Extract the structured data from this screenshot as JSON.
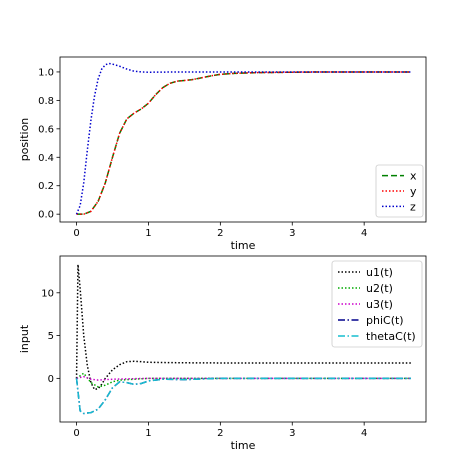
{
  "figure": {
    "background": "#ffffff"
  },
  "chart_data": [
    {
      "type": "line",
      "title": "",
      "xlabel": "time",
      "ylabel": "position",
      "xlim": [
        -0.23,
        4.86
      ],
      "ylim": [
        -0.055,
        1.105
      ],
      "xticks": [
        0,
        1,
        2,
        3,
        4
      ],
      "xtick_labels": [
        "0",
        "1",
        "2",
        "3",
        "4"
      ],
      "yticks": [
        0.0,
        0.2,
        0.4,
        0.6,
        0.8,
        1.0
      ],
      "ytick_labels": [
        "0.0",
        "0.2",
        "0.4",
        "0.6",
        "0.8",
        "1.0"
      ],
      "grid": false,
      "legend_position": "lower-right",
      "series": [
        {
          "name": "x",
          "color": "#008000",
          "style": "dashed",
          "points": [
            [
              0,
              0
            ],
            [
              0.1,
              0
            ],
            [
              0.2,
              0.02
            ],
            [
              0.3,
              0.09
            ],
            [
              0.4,
              0.22
            ],
            [
              0.5,
              0.4
            ],
            [
              0.6,
              0.57
            ],
            [
              0.7,
              0.67
            ],
            [
              0.8,
              0.71
            ],
            [
              0.9,
              0.74
            ],
            [
              1.0,
              0.78
            ],
            [
              1.1,
              0.84
            ],
            [
              1.2,
              0.89
            ],
            [
              1.3,
              0.92
            ],
            [
              1.4,
              0.935
            ],
            [
              1.5,
              0.94
            ],
            [
              1.6,
              0.945
            ],
            [
              1.7,
              0.955
            ],
            [
              1.8,
              0.965
            ],
            [
              1.9,
              0.975
            ],
            [
              2.0,
              0.983
            ],
            [
              2.2,
              0.99
            ],
            [
              2.5,
              0.995
            ],
            [
              3.0,
              0.998
            ],
            [
              3.5,
              1.0
            ],
            [
              4.0,
              1.0
            ],
            [
              4.65,
              1.0
            ]
          ]
        },
        {
          "name": "y",
          "color": "#ff0000",
          "style": "dotted",
          "points": [
            [
              0,
              0
            ],
            [
              0.1,
              0
            ],
            [
              0.2,
              0.02
            ],
            [
              0.3,
              0.09
            ],
            [
              0.4,
              0.22
            ],
            [
              0.5,
              0.4
            ],
            [
              0.6,
              0.57
            ],
            [
              0.7,
              0.67
            ],
            [
              0.8,
              0.71
            ],
            [
              0.9,
              0.74
            ],
            [
              1.0,
              0.78
            ],
            [
              1.1,
              0.84
            ],
            [
              1.2,
              0.89
            ],
            [
              1.3,
              0.92
            ],
            [
              1.4,
              0.935
            ],
            [
              1.5,
              0.94
            ],
            [
              1.6,
              0.945
            ],
            [
              1.7,
              0.955
            ],
            [
              1.8,
              0.965
            ],
            [
              1.9,
              0.975
            ],
            [
              2.0,
              0.983
            ],
            [
              2.2,
              0.99
            ],
            [
              2.5,
              0.995
            ],
            [
              3.0,
              0.998
            ],
            [
              3.5,
              1.0
            ],
            [
              4.0,
              1.0
            ],
            [
              4.65,
              1.0
            ]
          ]
        },
        {
          "name": "z",
          "color": "#0000cc",
          "style": "dotted",
          "points": [
            [
              0,
              0
            ],
            [
              0.05,
              0.06
            ],
            [
              0.1,
              0.22
            ],
            [
              0.15,
              0.45
            ],
            [
              0.2,
              0.66
            ],
            [
              0.25,
              0.83
            ],
            [
              0.3,
              0.95
            ],
            [
              0.35,
              1.02
            ],
            [
              0.4,
              1.05
            ],
            [
              0.45,
              1.06
            ],
            [
              0.5,
              1.055
            ],
            [
              0.6,
              1.04
            ],
            [
              0.7,
              1.02
            ],
            [
              0.8,
              1.005
            ],
            [
              0.9,
              1.0
            ],
            [
              1.0,
              0.998
            ],
            [
              1.2,
              0.999
            ],
            [
              1.5,
              1.0
            ],
            [
              2.0,
              1.0
            ],
            [
              3.0,
              1.0
            ],
            [
              4.0,
              1.0
            ],
            [
              4.65,
              1.0
            ]
          ]
        }
      ]
    },
    {
      "type": "line",
      "title": "",
      "xlabel": "time",
      "ylabel": "input",
      "xlim": [
        -0.23,
        4.86
      ],
      "ylim": [
        -5.1,
        14.3
      ],
      "xticks": [
        0,
        1,
        2,
        3,
        4
      ],
      "xtick_labels": [
        "0",
        "1",
        "2",
        "3",
        "4"
      ],
      "yticks": [
        0,
        5,
        10
      ],
      "ytick_labels": [
        "0",
        "5",
        "10"
      ],
      "grid": false,
      "legend_position": "upper-right",
      "series": [
        {
          "name": "u1(t)",
          "color": "#000000",
          "style": "dotted",
          "points": [
            [
              0,
              0
            ],
            [
              0.02,
              13.3
            ],
            [
              0.05,
              10.5
            ],
            [
              0.1,
              5.0
            ],
            [
              0.15,
              1.5
            ],
            [
              0.2,
              -0.5
            ],
            [
              0.25,
              -1.3
            ],
            [
              0.3,
              -1.2
            ],
            [
              0.35,
              -0.7
            ],
            [
              0.4,
              0.0
            ],
            [
              0.5,
              1.0
            ],
            [
              0.6,
              1.6
            ],
            [
              0.7,
              1.95
            ],
            [
              0.8,
              2.0
            ],
            [
              0.9,
              1.95
            ],
            [
              1.0,
              1.88
            ],
            [
              1.2,
              1.85
            ],
            [
              1.5,
              1.82
            ],
            [
              2.0,
              1.8
            ],
            [
              3.0,
              1.8
            ],
            [
              4.0,
              1.8
            ],
            [
              4.65,
              1.8
            ]
          ]
        },
        {
          "name": "u2(t)",
          "color": "#00aa00",
          "style": "dotted",
          "points": [
            [
              0,
              0
            ],
            [
              0.1,
              0.6
            ],
            [
              0.2,
              -0.5
            ],
            [
              0.3,
              -1.0
            ],
            [
              0.4,
              -0.8
            ],
            [
              0.5,
              -0.4
            ],
            [
              0.6,
              -0.2
            ],
            [
              0.8,
              -0.1
            ],
            [
              1.0,
              0.0
            ],
            [
              1.5,
              0.0
            ],
            [
              2.0,
              0.0
            ],
            [
              3.0,
              0.0
            ],
            [
              4.0,
              0.0
            ],
            [
              4.65,
              0.0
            ]
          ]
        },
        {
          "name": "u3(t)",
          "color": "#cc00cc",
          "style": "dotted",
          "points": [
            [
              0,
              0
            ],
            [
              0.1,
              0.2
            ],
            [
              0.2,
              -0.1
            ],
            [
              0.3,
              -0.2
            ],
            [
              0.5,
              -0.1
            ],
            [
              1.0,
              0.0
            ],
            [
              2.0,
              0.0
            ],
            [
              3.0,
              0.0
            ],
            [
              4.0,
              0.0
            ],
            [
              4.65,
              0.0
            ]
          ]
        },
        {
          "name": "phiC(t)",
          "color": "#00008b",
          "style": "dashdot",
          "points": [
            [
              0,
              0
            ],
            [
              0.05,
              -3.8
            ],
            [
              0.1,
              -4.1
            ],
            [
              0.2,
              -4.0
            ],
            [
              0.3,
              -3.6
            ],
            [
              0.4,
              -2.5
            ],
            [
              0.5,
              -1.1
            ],
            [
              0.6,
              -0.4
            ],
            [
              0.7,
              -0.5
            ],
            [
              0.8,
              -0.7
            ],
            [
              0.9,
              -0.6
            ],
            [
              1.0,
              -0.3
            ],
            [
              1.2,
              -0.1
            ],
            [
              1.5,
              -0.15
            ],
            [
              1.8,
              -0.05
            ],
            [
              2.0,
              0.0
            ],
            [
              3.0,
              0.0
            ],
            [
              4.0,
              0.0
            ],
            [
              4.65,
              0.0
            ]
          ]
        },
        {
          "name": "thetaC(t)",
          "color": "#17becf",
          "style": "dashdot",
          "points": [
            [
              0,
              0
            ],
            [
              0.05,
              -3.8
            ],
            [
              0.1,
              -4.1
            ],
            [
              0.2,
              -4.0
            ],
            [
              0.3,
              -3.6
            ],
            [
              0.4,
              -2.5
            ],
            [
              0.5,
              -1.1
            ],
            [
              0.6,
              -0.4
            ],
            [
              0.7,
              -0.5
            ],
            [
              0.8,
              -0.7
            ],
            [
              0.9,
              -0.6
            ],
            [
              1.0,
              -0.3
            ],
            [
              1.2,
              -0.1
            ],
            [
              1.5,
              -0.15
            ],
            [
              1.8,
              -0.05
            ],
            [
              2.0,
              0.0
            ],
            [
              3.0,
              0.0
            ],
            [
              4.0,
              0.0
            ],
            [
              4.65,
              0.0
            ]
          ]
        }
      ]
    }
  ]
}
